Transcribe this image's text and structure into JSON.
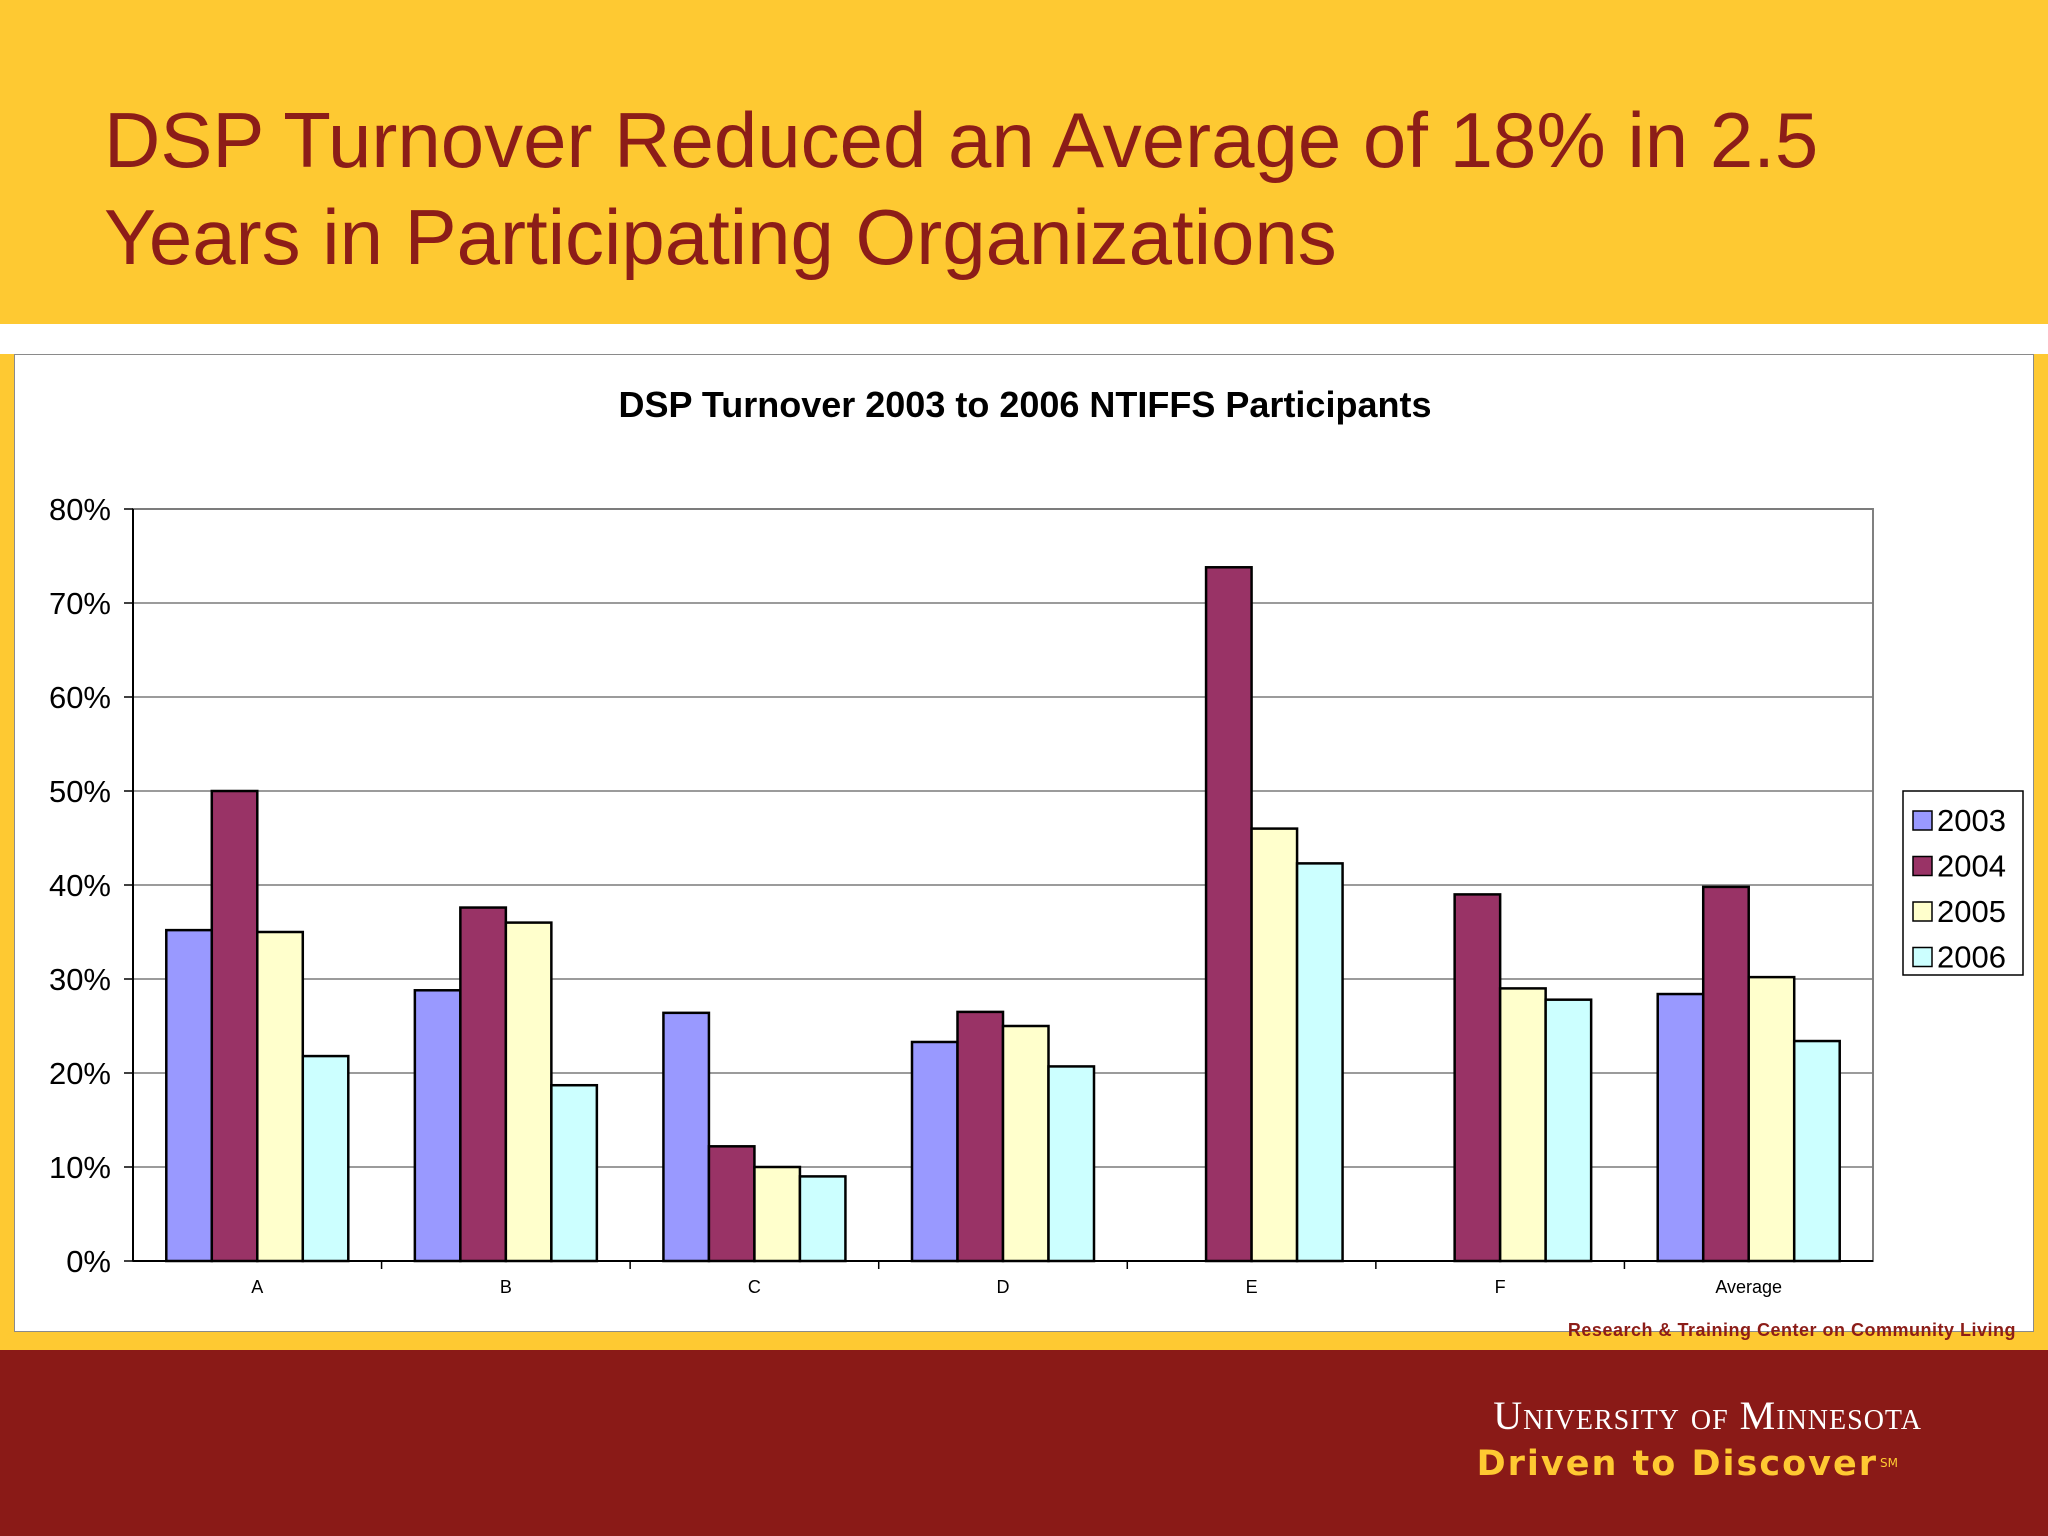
{
  "slide": {
    "title": "DSP Turnover Reduced an Average of 18% in 2.5 Years in Participating Organizations"
  },
  "footer": {
    "rtc_text": "Research & Training Center on Community Living",
    "university": "University of Minnesota",
    "tagline": "Driven to Discover",
    "tagline_mark": "SM"
  },
  "colors": {
    "title_band": "#FEC932",
    "title_text": "#8C1D18",
    "footer_band": "#8A1A17",
    "tagline": "#FEC932"
  },
  "chart_data": {
    "type": "bar",
    "title": "DSP Turnover 2003 to 2006 NTIFFS Participants",
    "xlabel": "",
    "ylabel": "",
    "categories": [
      "A",
      "B",
      "C",
      "D",
      "E",
      "F",
      "Average"
    ],
    "ylim": [
      0,
      80
    ],
    "yticks": [
      0,
      10,
      20,
      30,
      40,
      50,
      60,
      70,
      80
    ],
    "ytick_labels": [
      "0%",
      "10%",
      "20%",
      "30%",
      "40%",
      "50%",
      "60%",
      "70%",
      "80%"
    ],
    "grid": true,
    "legend_position": "right",
    "series": [
      {
        "name": "2003",
        "color": "#9999FF",
        "values": [
          35.2,
          28.8,
          26.4,
          23.3,
          null,
          null,
          28.4
        ]
      },
      {
        "name": "2004",
        "color": "#993366",
        "values": [
          50.0,
          37.6,
          12.2,
          26.5,
          73.8,
          39.0,
          39.8
        ]
      },
      {
        "name": "2005",
        "color": "#FFFFCC",
        "values": [
          35.0,
          36.0,
          10.0,
          25.0,
          46.0,
          29.0,
          30.2
        ]
      },
      {
        "name": "2006",
        "color": "#CCFFFF",
        "values": [
          21.8,
          18.7,
          9.0,
          20.7,
          42.3,
          27.8,
          23.4
        ]
      }
    ]
  }
}
